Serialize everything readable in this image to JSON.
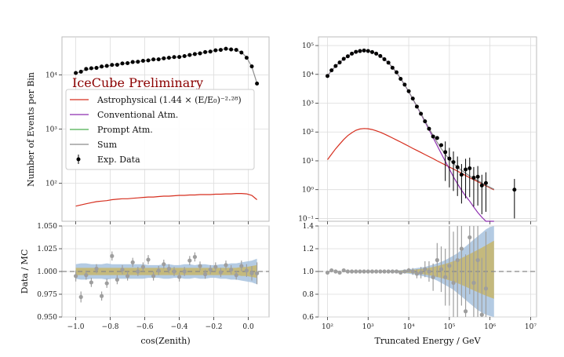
{
  "figure": {
    "watermark": "IceCube Preliminary"
  },
  "colors": {
    "astro": "#d62f1f",
    "conv": "#8e2fb0",
    "prompt": "#4caf50",
    "sum": "#8c8c8c",
    "data": "#000000",
    "ratio_points": "#9e9e9e",
    "band_blue": "#a7c2de",
    "band_olive": "#c7b66b",
    "grid": "#dcdcdc"
  },
  "legend": [
    {
      "key": "astro",
      "label": "Astrophysical (1.44 × (E/E₀)⁻²·²⁸)"
    },
    {
      "key": "conv",
      "label": "Conventional Atm."
    },
    {
      "key": "prompt",
      "label": "Prompt Atm."
    },
    {
      "key": "sum",
      "label": "Sum"
    },
    {
      "key": "data",
      "label": "Exp. Data"
    }
  ],
  "chart_data": [
    {
      "type": "line",
      "ylabel": "Number of Events per Bin",
      "yscale": "log",
      "xlim": [
        -1.08,
        0.12
      ],
      "ylim": [
        20,
        50000
      ],
      "yticks": [
        100,
        1000,
        10000
      ],
      "yticklabels": [
        "10²",
        "10³",
        "10⁴"
      ],
      "x": [
        -1.0,
        -0.97,
        -0.94,
        -0.91,
        -0.88,
        -0.85,
        -0.82,
        -0.79,
        -0.76,
        -0.73,
        -0.7,
        -0.67,
        -0.64,
        -0.61,
        -0.58,
        -0.55,
        -0.52,
        -0.49,
        -0.46,
        -0.43,
        -0.4,
        -0.37,
        -0.34,
        -0.31,
        -0.28,
        -0.25,
        -0.22,
        -0.19,
        -0.16,
        -0.13,
        -0.1,
        -0.07,
        -0.04,
        -0.01,
        0.02,
        0.05
      ],
      "series": [
        {
          "key": "astro",
          "values": [
            38,
            40,
            42,
            44,
            46,
            47,
            48,
            50,
            51,
            52,
            52,
            53,
            54,
            55,
            56,
            56,
            57,
            58,
            58,
            59,
            60,
            60,
            61,
            61,
            62,
            62,
            62,
            63,
            63,
            64,
            64,
            65,
            65,
            64,
            60,
            50
          ]
        },
        {
          "key": "sum",
          "values": [
            10500,
            11500,
            12500,
            13000,
            13500,
            14000,
            14500,
            15000,
            15500,
            16000,
            16500,
            17000,
            17500,
            18000,
            18500,
            19000,
            19500,
            20000,
            20500,
            21000,
            21500,
            22000,
            23000,
            24000,
            25000,
            26000,
            27000,
            28000,
            29000,
            30000,
            29500,
            28500,
            26000,
            21000,
            14000,
            7000
          ]
        },
        {
          "key": "data",
          "values": [
            10800,
            11400,
            12800,
            13200,
            13400,
            14200,
            14600,
            15200,
            15300,
            16200,
            16400,
            17200,
            17400,
            18100,
            18400,
            19200,
            19300,
            20100,
            20600,
            21200,
            21300,
            22100,
            23200,
            24100,
            24800,
            26200,
            26800,
            28300,
            28800,
            30200,
            29300,
            28800,
            25700,
            20600,
            14300,
            6900
          ]
        }
      ]
    },
    {
      "type": "scatter",
      "xlabel": "cos(Zenith)",
      "ylabel": "Data / MC",
      "xlim": [
        -1.08,
        0.12
      ],
      "ylim": [
        0.95,
        1.05
      ],
      "xticks": [
        -1.0,
        -0.8,
        -0.6,
        -0.4,
        -0.2,
        0.0
      ],
      "xticklabels": [
        "−1.0",
        "−0.8",
        "−0.6",
        "−0.4",
        "−0.2",
        "0.0"
      ],
      "yticks": [
        0.95,
        0.975,
        1.0,
        1.025,
        1.05
      ],
      "yticklabels": [
        "0.950",
        "0.975",
        "1.000",
        "1.025",
        "1.050"
      ],
      "reference_line": 1.0,
      "x": [
        -1.0,
        -0.97,
        -0.94,
        -0.91,
        -0.88,
        -0.85,
        -0.82,
        -0.79,
        -0.76,
        -0.73,
        -0.7,
        -0.67,
        -0.64,
        -0.61,
        -0.58,
        -0.55,
        -0.52,
        -0.49,
        -0.46,
        -0.43,
        -0.4,
        -0.37,
        -0.34,
        -0.31,
        -0.28,
        -0.25,
        -0.22,
        -0.19,
        -0.16,
        -0.13,
        -0.1,
        -0.07,
        -0.04,
        -0.01,
        0.02,
        0.05
      ],
      "values": [
        0.995,
        0.972,
        0.996,
        0.988,
        1.003,
        0.973,
        0.987,
        1.017,
        0.991,
        1.002,
        0.995,
        1.01,
        1.0,
        1.005,
        1.013,
        0.995,
        1.001,
        1.008,
        1.003,
        1.0,
        0.994,
        1.0,
        1.012,
        1.016,
        1.006,
        0.997,
        1.002,
        1.005,
        0.999,
        1.007,
        1.002,
        0.996,
        1.006,
        1.001,
        0.998,
        0.998
      ],
      "errors": [
        0.006,
        0.006,
        0.005,
        0.005,
        0.005,
        0.005,
        0.005,
        0.005,
        0.005,
        0.005,
        0.005,
        0.005,
        0.005,
        0.005,
        0.005,
        0.005,
        0.005,
        0.005,
        0.005,
        0.005,
        0.005,
        0.005,
        0.005,
        0.005,
        0.005,
        0.005,
        0.005,
        0.005,
        0.005,
        0.005,
        0.005,
        0.005,
        0.006,
        0.007,
        0.008,
        0.012
      ],
      "band_blue": {
        "upper": [
          1.008,
          1.009,
          1.009,
          1.008,
          1.008,
          1.008,
          1.009,
          1.008,
          1.008,
          1.008,
          1.008,
          1.008,
          1.008,
          1.008,
          1.007,
          1.007,
          1.007,
          1.008,
          1.008,
          1.007,
          1.007,
          1.008,
          1.008,
          1.007,
          1.008,
          1.008,
          1.007,
          1.007,
          1.008,
          1.008,
          1.009,
          1.009,
          1.01,
          1.011,
          1.012,
          1.014
        ],
        "lower": [
          0.992,
          0.991,
          0.991,
          0.992,
          0.992,
          0.992,
          0.991,
          0.992,
          0.992,
          0.992,
          0.992,
          0.992,
          0.992,
          0.992,
          0.993,
          0.993,
          0.993,
          0.992,
          0.992,
          0.993,
          0.993,
          0.992,
          0.992,
          0.993,
          0.992,
          0.992,
          0.993,
          0.993,
          0.992,
          0.992,
          0.991,
          0.991,
          0.99,
          0.989,
          0.988,
          0.986
        ]
      },
      "band_olive": {
        "upper": [
          1.004,
          1.004,
          1.004,
          1.004,
          1.004,
          1.004,
          1.004,
          1.004,
          1.004,
          1.004,
          1.004,
          1.004,
          1.004,
          1.004,
          1.004,
          1.004,
          1.004,
          1.004,
          1.004,
          1.004,
          1.004,
          1.004,
          1.004,
          1.004,
          1.004,
          1.004,
          1.004,
          1.004,
          1.004,
          1.004,
          1.004,
          1.004,
          1.005,
          1.005,
          1.006,
          1.007
        ],
        "lower": [
          0.996,
          0.996,
          0.996,
          0.996,
          0.996,
          0.996,
          0.996,
          0.996,
          0.996,
          0.996,
          0.996,
          0.996,
          0.996,
          0.996,
          0.996,
          0.996,
          0.996,
          0.996,
          0.996,
          0.996,
          0.996,
          0.996,
          0.996,
          0.996,
          0.996,
          0.996,
          0.996,
          0.996,
          0.996,
          0.996,
          0.996,
          0.996,
          0.995,
          0.995,
          0.994,
          0.993
        ]
      }
    },
    {
      "type": "line",
      "yscale": "log",
      "xscale": "log",
      "xlim": [
        60,
        14000000
      ],
      "ylim": [
        0.08,
        200000
      ],
      "yticks": [
        0.1,
        1,
        10,
        100,
        1000,
        10000,
        100000
      ],
      "yticklabels": [
        "10⁻¹",
        "10⁰",
        "10¹",
        "10²",
        "10³",
        "10⁴",
        "10⁵"
      ],
      "x": [
        100,
        125.9,
        158.5,
        199.5,
        251.2,
        316.2,
        398.1,
        501.2,
        631,
        794.3,
        1000,
        1259,
        1585,
        1995,
        2512,
        3162,
        3981,
        5012,
        6310,
        7943,
        10000,
        12590,
        15850,
        19950,
        25120,
        31620,
        39810,
        50120,
        63100,
        79430,
        100000,
        125900,
        158500,
        199500,
        251200,
        316200,
        398100,
        501200,
        631000,
        794300,
        1000000,
        1259000
      ],
      "series": [
        {
          "key": "astro",
          "values": [
            11,
            17,
            26,
            38,
            55,
            75,
            95,
            115,
            127,
            132,
            130,
            122,
            110,
            98,
            85,
            73,
            62,
            53,
            45,
            38,
            32,
            27,
            23,
            19.5,
            16.5,
            14,
            12,
            10,
            8.5,
            7.2,
            6.1,
            5.2,
            4.4,
            3.7,
            3.1,
            2.6,
            2.2,
            1.9,
            1.6,
            1.35,
            1.15,
            0.98
          ]
        },
        {
          "key": "conv",
          "values": [
            9000,
            13500,
            19000,
            26000,
            34000,
            43000,
            52000,
            60000,
            65000,
            67000,
            65000,
            60000,
            52000,
            43000,
            34000,
            25000,
            17500,
            11500,
            7200,
            4300,
            2500,
            1400,
            770,
            420,
            225,
            120,
            64,
            34,
            18,
            9.6,
            5.2,
            2.8,
            1.6,
            0.95,
            0.6,
            0.4,
            0.25,
            0.16,
            0.11,
            0.08,
            0.06,
            0.05
          ]
        },
        {
          "key": "sum",
          "values": [
            9011,
            13517,
            19026,
            26038,
            34055,
            43075,
            52095,
            60115,
            65127,
            67132,
            65130,
            60122,
            52110,
            43098,
            34085,
            25073,
            17562,
            11553,
            7245,
            4338,
            2532,
            1427,
            793,
            440,
            242,
            134,
            76,
            44,
            26.5,
            16.8,
            11.3,
            8.0,
            6.0,
            4.65,
            3.7,
            3.0,
            2.45,
            2.06,
            1.71,
            1.43,
            1.21,
            1.03
          ]
        },
        {
          "key": "data",
          "x": [
            100,
            125.9,
            158.5,
            199.5,
            251.2,
            316.2,
            398.1,
            501.2,
            631,
            794.3,
            1000,
            1259,
            1585,
            1995,
            2512,
            3162,
            3981,
            5012,
            6310,
            7943,
            10000,
            12590,
            15850,
            19950,
            25120,
            31620,
            39810,
            50120,
            63100,
            79430,
            100000,
            125900,
            158500,
            199500,
            251200,
            316200,
            398100,
            501200,
            631000,
            794300,
            4000000
          ],
          "values": [
            8800,
            13800,
            19500,
            25800,
            34500,
            42500,
            52500,
            60500,
            64500,
            67500,
            64800,
            59500,
            52300,
            43500,
            33500,
            25500,
            17000,
            11800,
            7000,
            4400,
            2600,
            1450,
            760,
            430,
            235,
            130,
            70,
            62,
            35,
            20,
            12,
            9,
            6,
            3.3,
            5,
            5.5,
            2.6,
            2.8,
            1.4,
            1.7,
            1.0
          ]
        }
      ]
    },
    {
      "type": "scatter",
      "xlabel": "Truncated Energy / GeV",
      "xscale": "log",
      "xlim": [
        60,
        14000000
      ],
      "ylim": [
        0.6,
        1.4
      ],
      "xticks": [
        100,
        1000,
        10000,
        100000,
        1000000,
        10000000
      ],
      "xticklabels": [
        "10²",
        "10³",
        "10⁴",
        "10⁵",
        "10⁶",
        "10⁷"
      ],
      "yticks": [
        0.6,
        0.8,
        1.0,
        1.2,
        1.4
      ],
      "yticklabels": [
        "0.6",
        "0.8",
        "1.0",
        "1.2",
        "1.4"
      ],
      "reference_line": 1.0,
      "x": [
        100,
        125.9,
        158.5,
        199.5,
        251.2,
        316.2,
        398.1,
        501.2,
        631,
        794.3,
        1000,
        1259,
        1585,
        1995,
        2512,
        3162,
        3981,
        5012,
        6310,
        7943,
        10000,
        12590,
        15850,
        19950,
        25120,
        31620,
        39810,
        50120,
        63100,
        79430,
        100000,
        125900,
        158500,
        199500,
        251200,
        316200,
        398100,
        501200,
        631000,
        794300
      ],
      "values": [
        0.99,
        1.01,
        1.0,
        0.99,
        1.01,
        1.0,
        1.0,
        1.0,
        1.0,
        1.0,
        1.0,
        1.0,
        1.0,
        1.0,
        1.0,
        1.0,
        1.0,
        1.0,
        0.99,
        1.0,
        1.01,
        1.0,
        0.98,
        0.99,
        1.02,
        1.0,
        0.95,
        1.1,
        1.02,
        0.95,
        1.05,
        0.9,
        1.1,
        1.2,
        0.65,
        1.3,
        0.9,
        1.1,
        0.62,
        0.85
      ],
      "errors": [
        0.01,
        0.01,
        0.01,
        0.01,
        0.01,
        0.005,
        0.005,
        0.005,
        0.005,
        0.005,
        0.005,
        0.005,
        0.005,
        0.005,
        0.005,
        0.006,
        0.008,
        0.01,
        0.012,
        0.015,
        0.02,
        0.03,
        0.04,
        0.05,
        0.07,
        0.09,
        0.12,
        0.15,
        0.2,
        0.25,
        0.35,
        0.45,
        0.5,
        0.5,
        0.5,
        0.5,
        0.5,
        0.5,
        0.5,
        0.5
      ],
      "band_blue": {
        "upper": [
          1.0,
          1.0,
          1.0,
          1.0,
          1.0,
          1.0,
          1.0,
          1.0,
          1.0,
          1.0,
          1.0,
          1.0,
          1.0,
          1.0,
          1.0,
          1.005,
          1.01,
          1.01,
          1.012,
          1.015,
          1.02,
          1.025,
          1.03,
          1.035,
          1.04,
          1.05,
          1.06,
          1.07,
          1.085,
          1.1,
          1.12,
          1.14,
          1.16,
          1.19,
          1.22,
          1.25,
          1.28,
          1.31,
          1.34,
          1.37,
          1.39,
          1.4
        ],
        "lower": [
          1.0,
          1.0,
          1.0,
          1.0,
          1.0,
          1.0,
          1.0,
          1.0,
          1.0,
          1.0,
          1.0,
          1.0,
          1.0,
          1.0,
          1.0,
          0.995,
          0.99,
          0.99,
          0.988,
          0.985,
          0.98,
          0.975,
          0.97,
          0.962,
          0.955,
          0.945,
          0.935,
          0.92,
          0.9,
          0.88,
          0.86,
          0.84,
          0.81,
          0.78,
          0.75,
          0.72,
          0.69,
          0.66,
          0.64,
          0.62,
          0.61,
          0.6
        ]
      },
      "band_olive": {
        "upper": [
          1.0,
          1.0,
          1.0,
          1.0,
          1.0,
          1.0,
          1.0,
          1.0,
          1.0,
          1.0,
          1.0,
          1.0,
          1.0,
          1.0,
          1.0,
          1.003,
          1.005,
          1.006,
          1.008,
          1.01,
          1.012,
          1.015,
          1.018,
          1.022,
          1.027,
          1.033,
          1.04,
          1.048,
          1.057,
          1.067,
          1.078,
          1.09,
          1.103,
          1.118,
          1.135,
          1.153,
          1.172,
          1.19,
          1.21,
          1.23,
          1.25,
          1.27
        ],
        "lower": [
          1.0,
          1.0,
          1.0,
          1.0,
          1.0,
          1.0,
          1.0,
          1.0,
          1.0,
          1.0,
          1.0,
          1.0,
          1.0,
          1.0,
          1.0,
          0.997,
          0.995,
          0.994,
          0.992,
          0.99,
          0.988,
          0.985,
          0.982,
          0.978,
          0.973,
          0.967,
          0.96,
          0.952,
          0.943,
          0.933,
          0.922,
          0.91,
          0.897,
          0.882,
          0.866,
          0.85,
          0.834,
          0.818,
          0.802,
          0.787,
          0.773,
          0.76
        ]
      }
    }
  ]
}
